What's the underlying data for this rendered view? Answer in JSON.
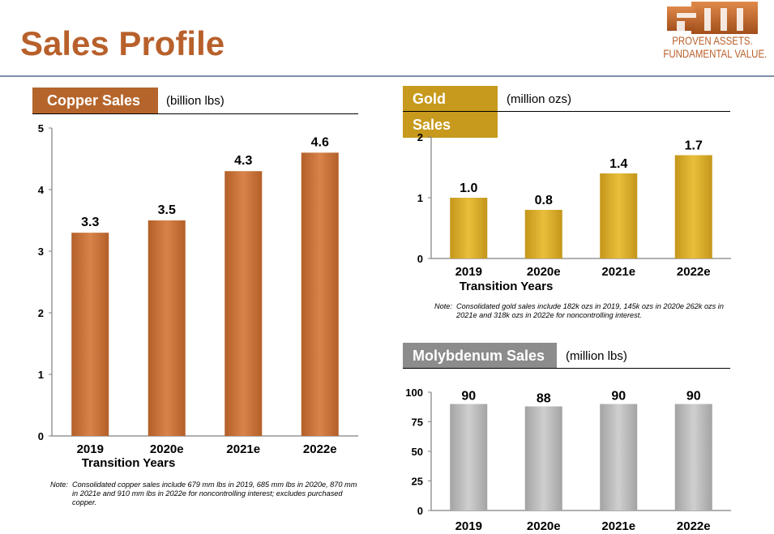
{
  "page_title": "Sales Profile",
  "logo": {
    "text": "FM",
    "tagline_1": "PROVEN ASSETS.",
    "tagline_2": "FUNDAMENTAL VALUE."
  },
  "colors": {
    "copper": "#b5652b",
    "gold": "#c79a1e",
    "moly": "#999999",
    "title": "#b8602b"
  },
  "copper": {
    "header": "Copper Sales",
    "unit": "(billion lbs)",
    "note_prefix": "Note:",
    "note": "Consolidated copper sales include 679 mm lbs in 2019, 685 mm lbs in 2020e, 870 mm in 2021e and 910 mm lbs in 2022e for noncontrolling interest; excludes purchased copper."
  },
  "gold": {
    "header": "Gold Sales",
    "unit": "(million ozs)",
    "note_prefix": "Note:",
    "note": "Consolidated gold sales include 182k ozs in 2019, 145k ozs in 2020e 262k ozs in 2021e and 318k ozs in 2022e for noncontrolling interest."
  },
  "moly": {
    "header": "Molybdenum Sales",
    "unit": "(million lbs)"
  },
  "chart_data": [
    {
      "type": "bar",
      "title": "Copper Sales",
      "unit": "(billion lbs)",
      "categories": [
        "2019",
        "2020e",
        "2021e",
        "2022e"
      ],
      "values": [
        3.3,
        3.5,
        4.3,
        4.6
      ],
      "value_labels": [
        "3.3",
        "3.5",
        "4.3",
        "4.6"
      ],
      "xlabel": "Transition Years",
      "ylim": [
        0,
        5
      ],
      "yticks": [
        0,
        1,
        2,
        3,
        4,
        5
      ],
      "grid": false
    },
    {
      "type": "bar",
      "title": "Gold Sales",
      "unit": "(million ozs)",
      "categories": [
        "2019",
        "2020e",
        "2021e",
        "2022e"
      ],
      "values": [
        1.0,
        0.8,
        1.4,
        1.7
      ],
      "value_labels": [
        "1.0",
        "0.8",
        "1.4",
        "1.7"
      ],
      "xlabel": "Transition Years",
      "ylim": [
        0,
        2
      ],
      "yticks": [
        0,
        1,
        2
      ],
      "grid": false
    },
    {
      "type": "bar",
      "title": "Molybdenum Sales",
      "unit": "(million lbs)",
      "categories": [
        "2019",
        "2020e",
        "2021e",
        "2022e"
      ],
      "values": [
        90,
        88,
        90,
        90
      ],
      "value_labels": [
        "90",
        "88",
        "90",
        "90"
      ],
      "xlabel": "",
      "ylim": [
        0,
        100
      ],
      "yticks": [
        0,
        25,
        50,
        75,
        100
      ],
      "grid": false
    }
  ]
}
